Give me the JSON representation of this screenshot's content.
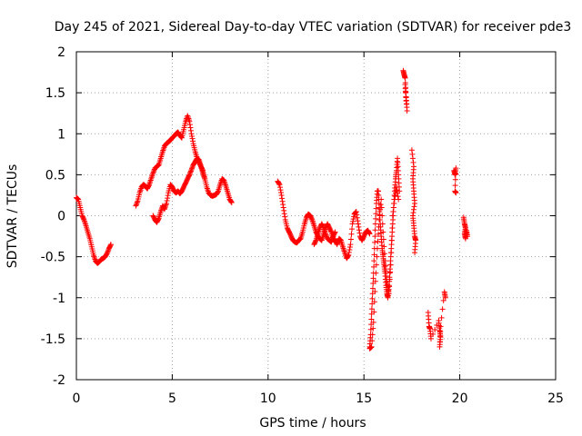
{
  "chart_data": {
    "type": "scatter",
    "title": "Day 245 of 2021, Sidereal Day-to-day VTEC variation (SDTVAR) for receiver pde3",
    "xlabel": "GPS time / hours",
    "ylabel": "SDTVAR / TECUs",
    "xlim": [
      0,
      25
    ],
    "ylim": [
      -2,
      2
    ],
    "xticks": [
      0,
      5,
      10,
      15,
      20,
      25
    ],
    "xtick_labels": [
      "0",
      "5",
      "10",
      "15",
      "20",
      "25"
    ],
    "yticks": [
      -2,
      -1.5,
      -1,
      -0.5,
      0,
      0.5,
      1,
      1.5,
      2
    ],
    "ytick_labels": [
      "-2",
      "-1.5",
      "-1",
      "-0.5",
      "0",
      "0.5",
      "1",
      "1.5",
      "2"
    ],
    "grid": true,
    "marker": "+",
    "color": "#ff0000",
    "series": [
      {
        "name": "pde3 SDTVAR",
        "segments": [
          [
            [
              0.0,
              0.22
            ],
            [
              0.1,
              0.2
            ],
            [
              0.2,
              0.1
            ],
            [
              0.3,
              0.0
            ],
            [
              0.4,
              -0.05
            ],
            [
              0.5,
              -0.12
            ],
            [
              0.6,
              -0.2
            ],
            [
              0.7,
              -0.28
            ],
            [
              0.8,
              -0.38
            ],
            [
              0.9,
              -0.48
            ],
            [
              1.0,
              -0.55
            ],
            [
              1.1,
              -0.58
            ],
            [
              1.2,
              -0.56
            ],
            [
              1.3,
              -0.53
            ],
            [
              1.4,
              -0.52
            ],
            [
              1.5,
              -0.5
            ],
            [
              1.6,
              -0.46
            ],
            [
              1.7,
              -0.4
            ],
            [
              1.8,
              -0.35
            ]
          ],
          [
            [
              3.1,
              0.12
            ],
            [
              3.2,
              0.18
            ],
            [
              3.3,
              0.28
            ],
            [
              3.4,
              0.35
            ],
            [
              3.5,
              0.38
            ],
            [
              3.6,
              0.36
            ],
            [
              3.7,
              0.33
            ],
            [
              3.8,
              0.38
            ],
            [
              3.9,
              0.45
            ],
            [
              4.0,
              0.52
            ],
            [
              4.1,
              0.58
            ],
            [
              4.2,
              0.6
            ],
            [
              4.3,
              0.62
            ],
            [
              4.4,
              0.7
            ],
            [
              4.5,
              0.78
            ],
            [
              4.6,
              0.85
            ],
            [
              4.7,
              0.88
            ],
            [
              4.8,
              0.9
            ],
            [
              4.9,
              0.92
            ],
            [
              5.0,
              0.95
            ],
            [
              5.1,
              0.97
            ],
            [
              5.2,
              1.0
            ],
            [
              5.3,
              1.02
            ],
            [
              5.4,
              0.98
            ],
            [
              5.5,
              0.95
            ],
            [
              5.6,
              1.05
            ],
            [
              5.7,
              1.15
            ],
            [
              5.8,
              1.22
            ],
            [
              5.9,
              1.15
            ],
            [
              6.0,
              1.0
            ],
            [
              6.1,
              0.88
            ],
            [
              6.2,
              0.78
            ],
            [
              6.3,
              0.7
            ],
            [
              6.4,
              0.65
            ],
            [
              6.5,
              0.6
            ],
            [
              6.6,
              0.55
            ],
            [
              6.7,
              0.45
            ],
            [
              6.8,
              0.35
            ],
            [
              6.9,
              0.28
            ],
            [
              7.0,
              0.25
            ],
            [
              7.1,
              0.24
            ],
            [
              7.2,
              0.25
            ],
            [
              7.3,
              0.26
            ],
            [
              7.4,
              0.3
            ],
            [
              7.5,
              0.38
            ],
            [
              7.6,
              0.45
            ],
            [
              7.7,
              0.43
            ],
            [
              7.8,
              0.36
            ],
            [
              7.9,
              0.28
            ],
            [
              8.0,
              0.2
            ],
            [
              8.1,
              0.16
            ]
          ],
          [
            [
              4.0,
              0.0
            ],
            [
              4.1,
              -0.05
            ],
            [
              4.2,
              -0.08
            ],
            [
              4.3,
              -0.03
            ],
            [
              4.4,
              0.05
            ],
            [
              4.5,
              0.12
            ],
            [
              4.6,
              0.08
            ],
            [
              4.7,
              0.15
            ],
            [
              4.8,
              0.28
            ],
            [
              4.9,
              0.38
            ],
            [
              5.0,
              0.35
            ],
            [
              5.1,
              0.3
            ],
            [
              5.2,
              0.28
            ],
            [
              5.3,
              0.3
            ],
            [
              5.4,
              0.27
            ],
            [
              5.5,
              0.3
            ],
            [
              5.6,
              0.35
            ],
            [
              5.7,
              0.4
            ],
            [
              5.8,
              0.45
            ],
            [
              5.9,
              0.5
            ],
            [
              6.0,
              0.56
            ],
            [
              6.1,
              0.62
            ],
            [
              6.2,
              0.66
            ],
            [
              6.3,
              0.7
            ],
            [
              6.4,
              0.68
            ],
            [
              6.5,
              0.6
            ],
            [
              6.6,
              0.52
            ],
            [
              6.7,
              0.45
            ]
          ],
          [
            [
              10.5,
              0.42
            ],
            [
              10.6,
              0.38
            ],
            [
              10.7,
              0.25
            ],
            [
              10.8,
              0.1
            ],
            [
              10.9,
              -0.05
            ],
            [
              11.0,
              -0.15
            ],
            [
              11.1,
              -0.2
            ],
            [
              11.2,
              -0.25
            ],
            [
              11.3,
              -0.3
            ],
            [
              11.4,
              -0.32
            ],
            [
              11.5,
              -0.33
            ],
            [
              11.6,
              -0.3
            ],
            [
              11.7,
              -0.28
            ],
            [
              11.8,
              -0.2
            ],
            [
              11.9,
              -0.1
            ],
            [
              12.0,
              -0.02
            ],
            [
              12.1,
              0.02
            ],
            [
              12.2,
              0.0
            ],
            [
              12.3,
              -0.05
            ],
            [
              12.4,
              -0.12
            ],
            [
              12.5,
              -0.2
            ],
            [
              12.6,
              -0.25
            ],
            [
              12.7,
              -0.28
            ],
            [
              12.8,
              -0.3
            ],
            [
              12.9,
              -0.22
            ],
            [
              13.0,
              -0.15
            ],
            [
              13.1,
              -0.1
            ],
            [
              13.2,
              -0.15
            ],
            [
              13.3,
              -0.2
            ],
            [
              13.4,
              -0.28
            ],
            [
              13.5,
              -0.3
            ],
            [
              13.6,
              -0.35
            ],
            [
              13.7,
              -0.28
            ],
            [
              13.8,
              -0.3
            ],
            [
              13.9,
              -0.38
            ],
            [
              14.0,
              -0.45
            ],
            [
              14.1,
              -0.52
            ],
            [
              14.2,
              -0.48
            ],
            [
              14.3,
              -0.35
            ],
            [
              14.4,
              -0.1
            ],
            [
              14.5,
              0.02
            ],
            [
              14.6,
              0.05
            ],
            [
              14.7,
              -0.1
            ],
            [
              14.8,
              -0.25
            ],
            [
              14.9,
              -0.3
            ],
            [
              15.0,
              -0.25
            ],
            [
              15.1,
              -0.2
            ],
            [
              15.2,
              -0.18
            ],
            [
              15.3,
              -0.22
            ]
          ],
          [
            [
              12.4,
              -0.35
            ],
            [
              12.5,
              -0.3
            ],
            [
              12.6,
              -0.22
            ],
            [
              12.7,
              -0.15
            ],
            [
              12.8,
              -0.1
            ],
            [
              12.9,
              -0.15
            ],
            [
              13.0,
              -0.22
            ],
            [
              13.1,
              -0.28
            ],
            [
              13.2,
              -0.3
            ],
            [
              13.3,
              -0.32
            ],
            [
              13.4,
              -0.25
            ],
            [
              13.5,
              -0.2
            ]
          ],
          [
            [
              15.3,
              -1.6
            ],
            [
              15.35,
              -1.45
            ],
            [
              15.4,
              -1.2
            ],
            [
              15.45,
              -0.95
            ],
            [
              15.5,
              -0.7
            ],
            [
              15.55,
              -0.4
            ],
            [
              15.6,
              -0.1
            ],
            [
              15.65,
              0.15
            ],
            [
              15.7,
              0.3
            ],
            [
              15.75,
              0.3
            ],
            [
              15.8,
              0.1
            ],
            [
              15.85,
              -0.1
            ],
            [
              15.9,
              -0.25
            ],
            [
              15.95,
              -0.4
            ],
            [
              16.0,
              -0.5
            ],
            [
              16.05,
              -0.6
            ],
            [
              16.1,
              -0.7
            ],
            [
              16.15,
              -0.85
            ],
            [
              16.2,
              -0.95
            ],
            [
              16.25,
              -1.0
            ],
            [
              16.3,
              -0.9
            ],
            [
              16.35,
              -0.7
            ],
            [
              16.4,
              -0.5
            ],
            [
              16.45,
              -0.3
            ],
            [
              16.5,
              -0.1
            ],
            [
              16.55,
              0.1
            ],
            [
              16.6,
              0.3
            ],
            [
              16.65,
              0.45
            ],
            [
              16.7,
              0.55
            ],
            [
              16.75,
              0.7
            ],
            [
              16.8,
              0.5
            ],
            [
              16.85,
              0.3
            ]
          ],
          [
            [
              15.3,
              -1.62
            ],
            [
              15.4,
              -1.6
            ],
            [
              15.5,
              -1.3
            ],
            [
              15.6,
              -0.8
            ],
            [
              15.7,
              -0.4
            ],
            [
              15.8,
              -0.05
            ],
            [
              15.9,
              0.2
            ],
            [
              16.0,
              -0.2
            ],
            [
              16.1,
              -0.55
            ],
            [
              16.2,
              -0.8
            ],
            [
              16.3,
              -0.95
            ],
            [
              16.4,
              -0.6
            ],
            [
              16.5,
              0.0
            ],
            [
              16.6,
              0.2
            ],
            [
              16.7,
              0.35
            ],
            [
              16.8,
              0.2
            ]
          ],
          [
            [
              17.05,
              1.77
            ],
            [
              17.1,
              1.72
            ],
            [
              17.15,
              1.68
            ],
            [
              17.2,
              1.45
            ],
            [
              17.25,
              1.28
            ],
            [
              17.15,
              1.6
            ],
            [
              17.2,
              1.4
            ]
          ],
          [
            [
              17.5,
              0.8
            ],
            [
              17.6,
              0.6
            ],
            [
              17.55,
              0.45
            ],
            [
              17.6,
              0.3
            ],
            [
              17.65,
              0.15
            ],
            [
              17.55,
              0.0
            ],
            [
              17.6,
              -0.12
            ],
            [
              17.65,
              -0.25
            ],
            [
              17.7,
              -0.3
            ],
            [
              17.65,
              -0.45
            ]
          ],
          [
            [
              18.35,
              -1.18
            ],
            [
              18.4,
              -1.35
            ],
            [
              18.45,
              -1.38
            ],
            [
              18.5,
              -1.5
            ],
            [
              18.9,
              -1.28
            ],
            [
              18.95,
              -1.4
            ],
            [
              19.0,
              -1.48
            ],
            [
              18.95,
              -1.6
            ],
            [
              19.0,
              -1.35
            ],
            [
              19.2,
              -0.93
            ],
            [
              19.25,
              -1.0
            ]
          ],
          [
            [
              19.7,
              0.55
            ],
            [
              19.75,
              0.5
            ],
            [
              19.8,
              0.58
            ],
            [
              19.75,
              0.3
            ],
            [
              19.8,
              0.28
            ]
          ],
          [
            [
              20.2,
              -0.02
            ],
            [
              20.25,
              -0.1
            ],
            [
              20.3,
              -0.15
            ],
            [
              20.25,
              -0.22
            ],
            [
              20.3,
              -0.28
            ],
            [
              20.35,
              -0.18
            ],
            [
              20.4,
              -0.25
            ]
          ]
        ]
      }
    ]
  }
}
